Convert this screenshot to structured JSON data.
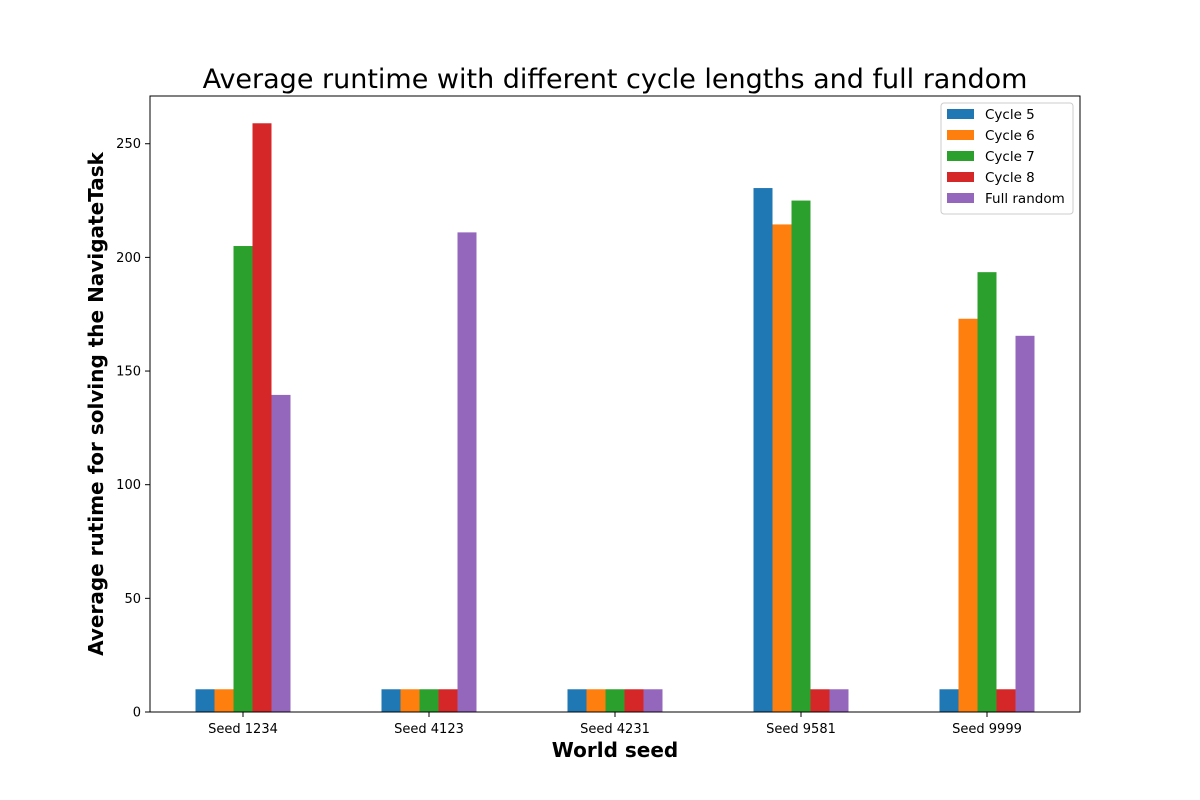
{
  "chart_data": {
    "type": "bar",
    "title": "Average runtime with different cycle lengths and full random",
    "xlabel": "World seed",
    "ylabel": "Average rutime for solving the NavigateTask",
    "categories": [
      "Seed 1234",
      "Seed 4123",
      "Seed 4231",
      "Seed 9581",
      "Seed 9999"
    ],
    "series": [
      {
        "name": "Cycle 5",
        "color": "#1f77b4",
        "values": [
          10,
          10,
          10,
          230.5,
          10
        ]
      },
      {
        "name": "Cycle 6",
        "color": "#ff7f0e",
        "values": [
          10,
          10,
          10,
          214.5,
          173
        ]
      },
      {
        "name": "Cycle 7",
        "color": "#2ca02c",
        "values": [
          205,
          10,
          10,
          225,
          193.5
        ]
      },
      {
        "name": "Cycle 8",
        "color": "#d62728",
        "values": [
          259,
          10,
          10,
          10,
          10
        ]
      },
      {
        "name": "Full random",
        "color": "#9467bd",
        "values": [
          139.5,
          211,
          10,
          10,
          165.5
        ]
      }
    ],
    "ylim": [
      0,
      271
    ],
    "yticks": [
      "0",
      "50",
      "100",
      "150",
      "200",
      "250"
    ],
    "grid": false,
    "legend_position": "top-right"
  }
}
